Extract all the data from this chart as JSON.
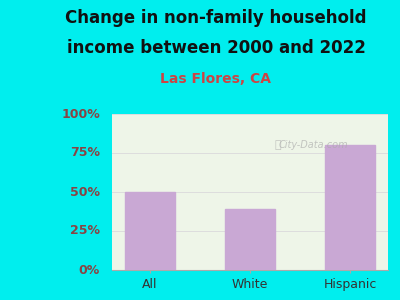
{
  "categories": [
    "All",
    "White",
    "Hispanic"
  ],
  "values": [
    50,
    39,
    80
  ],
  "bar_color": "#C9A8D4",
  "title_line1": "Change in non-family household",
  "title_line2": "income between 2000 and 2022",
  "subtitle": "Las Flores, CA",
  "ylabel_ticks": [
    0,
    25,
    50,
    75,
    100
  ],
  "ylabel_labels": [
    "0%",
    "25%",
    "50%",
    "75%",
    "100%"
  ],
  "ylim": [
    0,
    100
  ],
  "background_color": "#00EEEE",
  "plot_bg_color": "#EEF5E8",
  "title_color": "#111111",
  "subtitle_color": "#CC4444",
  "ytick_color": "#884444",
  "xtick_color": "#333333",
  "grid_color": "#DDDDDD",
  "watermark": "City-Data.com",
  "title_fontsize": 12,
  "subtitle_fontsize": 10,
  "tick_fontsize": 9,
  "bar_width": 0.5
}
